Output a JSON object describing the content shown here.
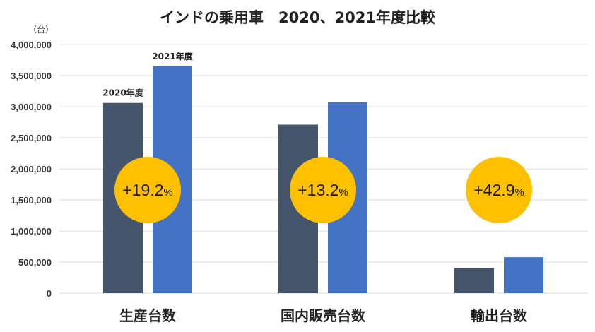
{
  "chart_data": {
    "type": "bar",
    "title": "インドの乗用車　2020、2021年度比較",
    "unit_label": "（台）",
    "categories": [
      "生産台数",
      "国内販売台数",
      "輸出台数"
    ],
    "series": [
      {
        "name": "2020年度",
        "values": [
          3060000,
          2710000,
          405000
        ],
        "color": "#44546a"
      },
      {
        "name": "2021年度",
        "values": [
          3650000,
          3070000,
          578000
        ],
        "color": "#4472c4"
      }
    ],
    "ylim": [
      0,
      4000000
    ],
    "yticks": [
      "0",
      "500,000",
      "1,000,000",
      "1,500,000",
      "2,000,000",
      "2,500,000",
      "3,000,000",
      "3,500,000",
      "4,000,000"
    ],
    "ytick_values": [
      0,
      500000,
      1000000,
      1500000,
      2000000,
      2500000,
      3000000,
      3500000,
      4000000
    ],
    "grid": true,
    "legend": "series labels above first category bars",
    "annotations": [
      {
        "category": "生産台数",
        "number": "+19.2",
        "suffix": "%"
      },
      {
        "category": "国内販売台数",
        "number": "+13.2",
        "suffix": "%"
      },
      {
        "category": "輸出台数",
        "number": "+42.9",
        "suffix": "%"
      }
    ],
    "annotation_color": "#ffc000"
  }
}
